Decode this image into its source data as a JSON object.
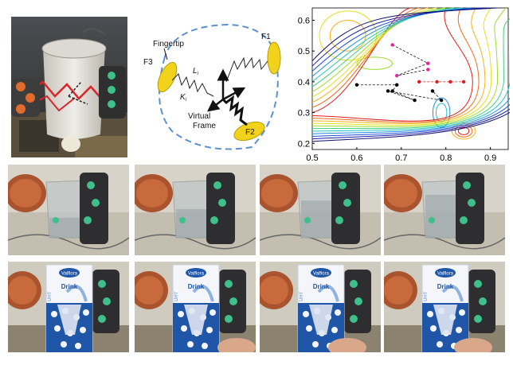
{
  "top_row": {
    "photo_alt": "",
    "diagram": {
      "labels": {
        "fingertip": "Fingertip",
        "f1": "F1",
        "f2": "F2",
        "f3": "F3",
        "li": "L",
        "li_sub": "i",
        "ki": "K",
        "ki_sub": "i",
        "virtual_line1": "Virtual",
        "virtual_line2": "Frame"
      },
      "colors": {
        "fingertip": "#f2d21b",
        "outline": "#5b8fd0",
        "spring": "#222222"
      }
    },
    "chart_data": {
      "type": "contour",
      "title": "",
      "xlabel": "",
      "ylabel": "",
      "xlim": [
        0.5,
        0.94
      ],
      "ylim": [
        0.18,
        0.64
      ],
      "xticks": [
        "0.5",
        "0.6",
        "0.7",
        "0.8",
        "0.9"
      ],
      "yticks": [
        "0.2",
        "0.3",
        "0.4",
        "0.5",
        "0.6"
      ],
      "grid": false,
      "trajectories": [
        {
          "color": "#e8229c",
          "points": [
            [
              0.68,
              0.52
            ],
            [
              0.76,
              0.46
            ],
            [
              0.69,
              0.42
            ],
            [
              0.76,
              0.44
            ]
          ]
        },
        {
          "color": "#e21a1a",
          "points": [
            [
              0.74,
              0.4
            ],
            [
              0.78,
              0.4
            ],
            [
              0.81,
              0.4
            ],
            [
              0.84,
              0.4
            ]
          ]
        },
        {
          "color": "#000000",
          "points": [
            [
              0.6,
              0.39
            ],
            [
              0.69,
              0.39
            ],
            [
              0.68,
              0.37
            ],
            [
              0.73,
              0.34
            ],
            [
              0.67,
              0.37
            ],
            [
              0.79,
              0.34
            ],
            [
              0.77,
              0.37
            ]
          ]
        }
      ]
    }
  },
  "image_rows": [
    {
      "name": "glass-row",
      "count": 4
    },
    {
      "name": "carton-row",
      "count": 4
    }
  ],
  "carton": {
    "brand": "Valflora",
    "product": "Drink",
    "side_text": "UHT",
    "colors": {
      "blue": "#1f56a8",
      "white": "#f4f6fb"
    }
  }
}
